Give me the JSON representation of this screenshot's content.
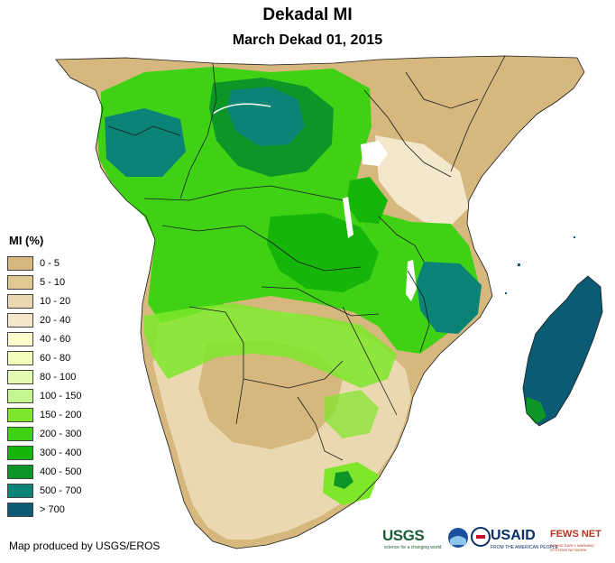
{
  "title": "Dekadal MI",
  "subtitle": "March Dekad 01, 2015",
  "legend": {
    "title": "MI (%)",
    "items": [
      {
        "label": "0 - 5",
        "color": "#d6b77d"
      },
      {
        "label": "5 - 10",
        "color": "#e0c891"
      },
      {
        "label": "10 - 20",
        "color": "#ead8b0"
      },
      {
        "label": "20 - 40",
        "color": "#f3e8cb"
      },
      {
        "label": "40 - 60",
        "color": "#fdfdcc"
      },
      {
        "label": "60 - 80",
        "color": "#f4fdba"
      },
      {
        "label": "80 - 100",
        "color": "#e3fbb1"
      },
      {
        "label": "100 - 150",
        "color": "#c5f58f"
      },
      {
        "label": "150 - 200",
        "color": "#7ee72a"
      },
      {
        "label": "200 - 300",
        "color": "#3fd214"
      },
      {
        "label": "300 - 400",
        "color": "#16b50a"
      },
      {
        "label": "400 - 500",
        "color": "#0d9628"
      },
      {
        "label": "500 - 700",
        "color": "#0b8477"
      },
      {
        "label": "> 700",
        "color": "#0b5b74"
      }
    ]
  },
  "credit": "Map produced by USGS/EROS",
  "logos": {
    "usgs": "USGS",
    "usgs_tagline": "science for a changing world",
    "usaid": "USAID",
    "usaid_tagline": "FROM THE AMERICAN PEOPLE",
    "fews": "FEWS NET",
    "fews_tagline": "FAMINE EARLY WARNING SYSTEMS NETWORK"
  }
}
